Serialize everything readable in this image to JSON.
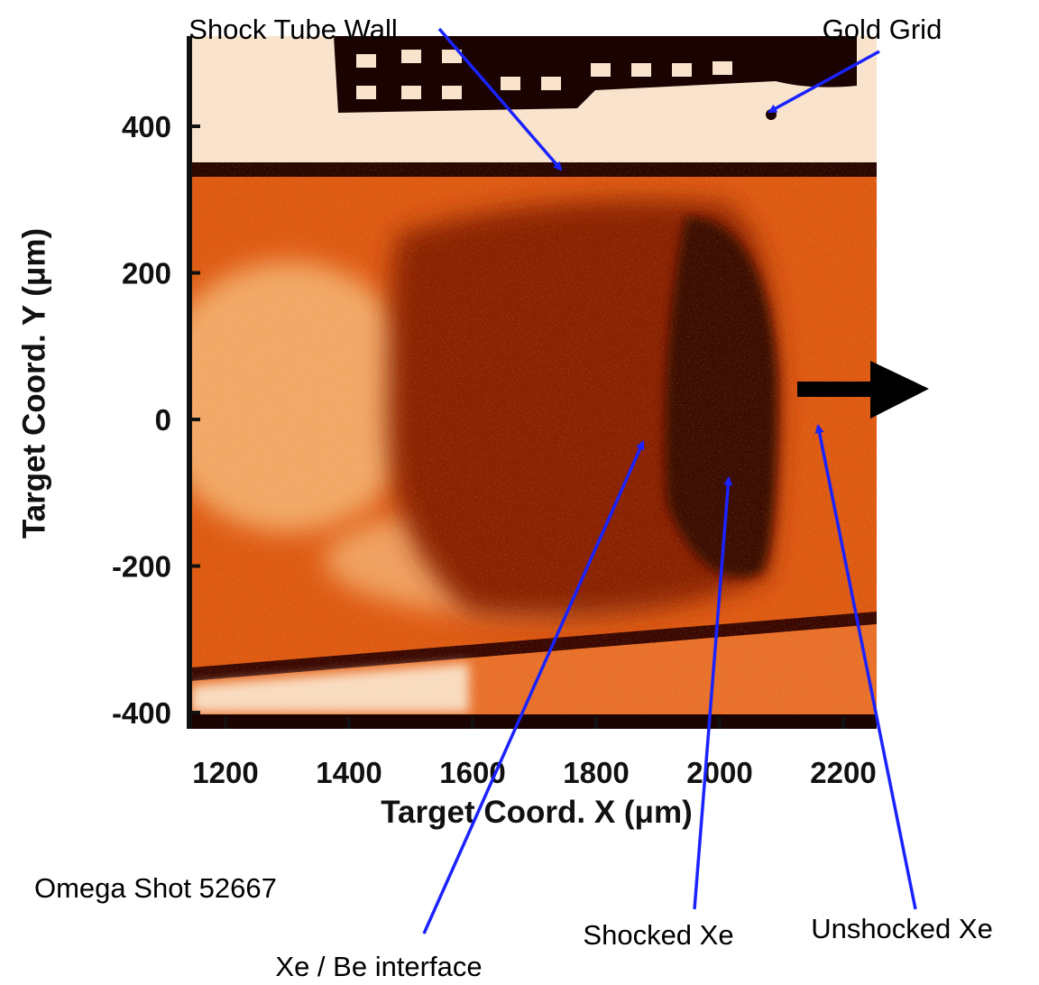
{
  "figure": {
    "y_axis": {
      "label": "Target Coord. Y (μm)",
      "ticks": [
        400,
        200,
        0,
        -200,
        -400
      ]
    },
    "x_axis": {
      "label": "Target Coord. X (μm)",
      "ticks": [
        1200,
        1400,
        1600,
        1800,
        2000,
        2200
      ]
    },
    "caption": "Omega Shot 52667",
    "annotations": [
      "Shock Tube Wall",
      "Gold Grid",
      "Xe / Be interface",
      "Shocked Xe",
      "Unshocked Xe"
    ]
  }
}
